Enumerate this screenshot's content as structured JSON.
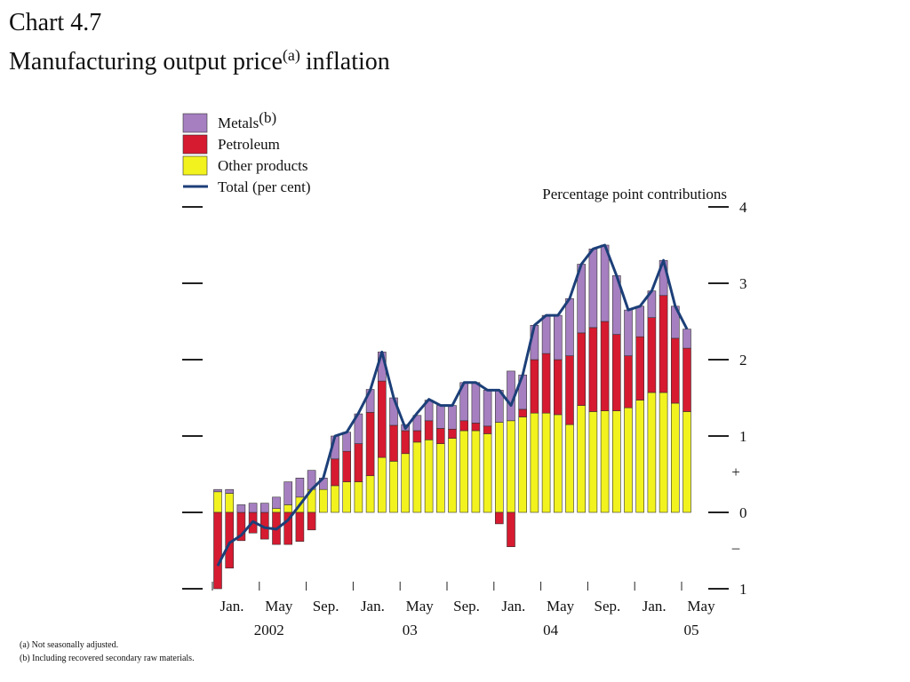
{
  "chart_data": {
    "type": "stacked_bar_line",
    "chart_label": "Chart 4.7",
    "title": "Manufacturing output price",
    "title_note": "(a)",
    "title_suffix": "inflation",
    "axis_title": "Percentage point contributions",
    "sign_labels": [
      "+",
      "–"
    ],
    "categories": [
      "Jan.",
      null,
      null,
      null,
      "May",
      null,
      null,
      null,
      "Sep.",
      null,
      null,
      null,
      "Jan.",
      null,
      null,
      null,
      "May",
      null,
      null,
      null,
      "Sep.",
      null,
      null,
      null,
      "Jan.",
      null,
      null,
      null,
      "May",
      null,
      null,
      null,
      "Sep.",
      null,
      null,
      null,
      "Jan.",
      null,
      null,
      null,
      "May"
    ],
    "x_group_labels": [
      null,
      null,
      null,
      null,
      "2002",
      null,
      null,
      null,
      null,
      null,
      null,
      null,
      null,
      null,
      null,
      null,
      "03",
      null,
      null,
      null,
      null,
      null,
      null,
      null,
      null,
      null,
      null,
      null,
      "04",
      null,
      null,
      null,
      null,
      null,
      null,
      null,
      null,
      null,
      null,
      null,
      "05"
    ],
    "series": [
      {
        "name": "Other products",
        "color": "#f2f21f",
        "kind": "bar",
        "values": [
          0.27,
          0.25,
          0,
          0,
          0,
          0.05,
          0.1,
          0.2,
          0.3,
          0.3,
          0.35,
          0.4,
          0.4,
          0.48,
          0.72,
          0.67,
          0.77,
          0.92,
          0.95,
          0.9,
          0.97,
          1.07,
          1.07,
          1.03,
          1.18,
          1.2,
          1.25,
          1.3,
          1.3,
          1.28,
          1.15,
          1.4,
          1.32,
          1.33,
          1.33,
          1.37,
          1.47,
          1.57,
          1.57,
          1.43,
          1.32
        ]
      },
      {
        "name": "Petroleum",
        "color": "#d61a30",
        "kind": "bar",
        "values": [
          -1.0,
          -0.73,
          -0.37,
          -0.27,
          -0.35,
          -0.42,
          -0.42,
          -0.38,
          -0.23,
          0,
          0.35,
          0.4,
          0.5,
          0.83,
          1.0,
          0.47,
          0.3,
          0.15,
          0.25,
          0.2,
          0.12,
          0.13,
          0.1,
          0.1,
          -0.15,
          -0.45,
          0.1,
          0.7,
          0.78,
          0.72,
          0.9,
          0.95,
          1.1,
          1.17,
          1.0,
          0.68,
          0.83,
          0.98,
          1.27,
          0.85,
          0.83
        ]
      },
      {
        "name": "Metals",
        "name_note": "(b)",
        "color": "#a57fc0",
        "kind": "bar",
        "values": [
          0.03,
          0.05,
          0.1,
          0.12,
          0.12,
          0.15,
          0.3,
          0.25,
          0.25,
          0.15,
          0.3,
          0.25,
          0.39,
          0.3,
          0.38,
          0.36,
          0.08,
          0.2,
          0.27,
          0.3,
          0.31,
          0.5,
          0.53,
          0.47,
          0.42,
          0.65,
          0.45,
          0.45,
          0.5,
          0.58,
          0.75,
          0.9,
          1.03,
          1.0,
          0.77,
          0.6,
          0.4,
          0.35,
          0.46,
          0.42,
          0.25
        ]
      },
      {
        "name": "Total (per cent)",
        "color": "#1c3f78",
        "kind": "line",
        "values": [
          -0.7,
          -0.4,
          -0.3,
          -0.12,
          -0.2,
          -0.22,
          -0.1,
          0.1,
          0.3,
          0.45,
          1.0,
          1.05,
          1.3,
          1.6,
          2.1,
          1.5,
          1.1,
          1.3,
          1.48,
          1.4,
          1.4,
          1.7,
          1.7,
          1.6,
          1.6,
          1.4,
          1.8,
          2.45,
          2.58,
          2.58,
          2.8,
          3.25,
          3.45,
          3.5,
          3.1,
          2.65,
          2.7,
          2.9,
          3.3,
          2.7,
          2.4
        ]
      }
    ],
    "legend_order": [
      2,
      1,
      0,
      3
    ],
    "ylim": [
      -1,
      4
    ],
    "yticks": [
      {
        "value": -1,
        "label": "1"
      },
      0,
      1,
      2,
      3,
      4
    ],
    "footnotes": [
      "(a)  Not seasonally adjusted.",
      "(b)  Including recovered secondary raw materials."
    ]
  }
}
